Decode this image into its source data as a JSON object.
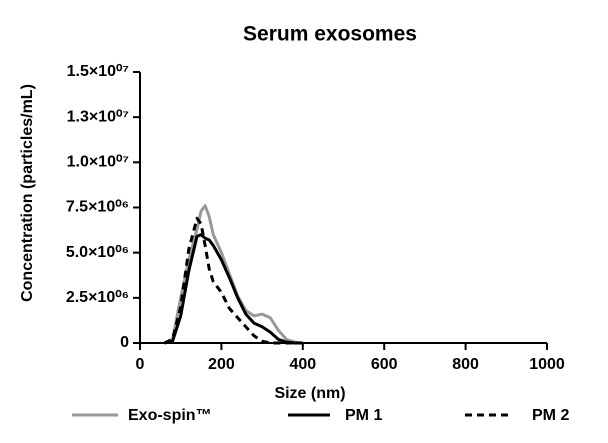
{
  "chart_data": {
    "type": "line",
    "title": "Serum exosomes",
    "x_label": "Size (nm)",
    "y_label": "Concentration (particles/mL)",
    "x": [
      60,
      80,
      100,
      120,
      140,
      150,
      160,
      170,
      180,
      200,
      220,
      240,
      260,
      280,
      300,
      320,
      340,
      360,
      380,
      400
    ],
    "series": [
      {
        "name": "Exo-spin™",
        "color": "#999999",
        "dashed": false,
        "values": [
          0,
          200000,
          2500000,
          4600000,
          6300000,
          7300000,
          7600000,
          7000000,
          6000000,
          5000000,
          3800000,
          2600000,
          1800000,
          1500000,
          1600000,
          1400000,
          700000,
          200000,
          50000,
          0
        ]
      },
      {
        "name": "PM 1",
        "color": "#000000",
        "dashed": false,
        "values": [
          0,
          100000,
          1500000,
          4000000,
          5900000,
          6000000,
          5800000,
          5700000,
          5400000,
          4600000,
          3600000,
          2500000,
          1600000,
          1100000,
          900000,
          600000,
          200000,
          50000,
          0,
          0
        ]
      },
      {
        "name": "PM 2",
        "color": "#000000",
        "dashed": true,
        "values": [
          0,
          200000,
          2000000,
          5200000,
          6900000,
          6600000,
          5400000,
          4100000,
          3400000,
          2800000,
          1900000,
          1400000,
          900000,
          400000,
          100000,
          0,
          0,
          0,
          0,
          0
        ]
      }
    ],
    "xlim": [
      0,
      1000
    ],
    "xticks": [
      0,
      200,
      400,
      600,
      800,
      1000
    ],
    "ylim": [
      0,
      15000000
    ],
    "yticks": [
      0,
      {
        "value": 2500000,
        "label": "2.5×10⁰⁶"
      },
      {
        "value": 5000000,
        "label": "5.0×10⁰⁶"
      },
      {
        "value": 7500000,
        "label": "7.5×10⁰⁶"
      },
      {
        "value": 10000000,
        "label": "1.0×10⁰⁷"
      },
      {
        "value": 12500000,
        "label": "1.3×10⁰⁷"
      },
      {
        "value": 15000000,
        "label": "1.5×10⁰⁷"
      }
    ],
    "grid": false
  }
}
